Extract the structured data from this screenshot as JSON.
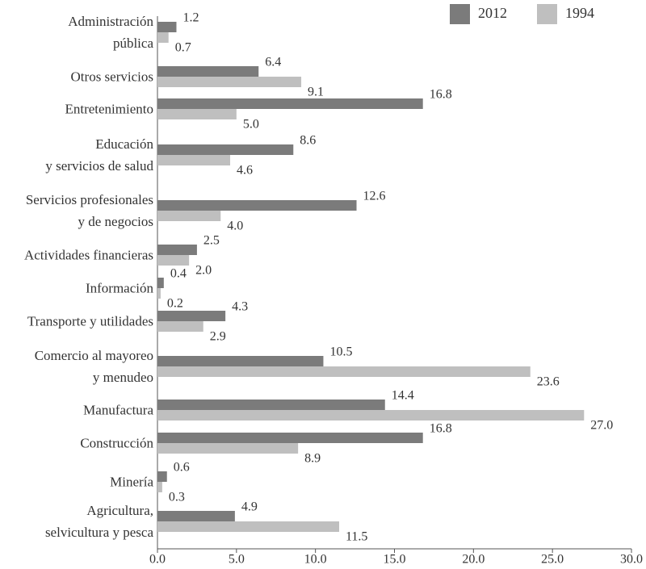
{
  "chart_data": {
    "type": "bar",
    "orientation": "horizontal",
    "categories": [
      "Administración\npública",
      "Otros servicios",
      "Entretenimiento",
      "Educación\ny servicios de salud",
      "Servicios profesionales\ny de negocios",
      "Actividades financieras",
      "Información",
      "Transporte y utilidades",
      "Comercio al mayoreo\ny menudeo",
      "Manufactura",
      "Construcción",
      "Minería",
      "Agricultura,\nselvicultura y pesca"
    ],
    "series": [
      {
        "name": "2012",
        "color": "#7b7b7b",
        "values": [
          1.2,
          6.4,
          16.8,
          8.6,
          12.6,
          2.5,
          0.4,
          4.3,
          10.5,
          14.4,
          16.8,
          0.6,
          4.9
        ],
        "value_labels": [
          "1.2",
          "6.4",
          "16.8",
          "8.6",
          "12.6",
          "2.5",
          "0.4",
          "4.3",
          "10.5",
          "14.4",
          "16.8",
          "0.6",
          "4.9"
        ]
      },
      {
        "name": "1994",
        "color": "#bfbfbf",
        "values": [
          0.7,
          9.1,
          5.0,
          4.6,
          4.0,
          2.0,
          0.2,
          2.9,
          23.6,
          27.0,
          8.9,
          0.3,
          11.5
        ],
        "value_labels": [
          "0.7",
          "9.1",
          "5.0",
          "4.6",
          "4.0",
          "2.0",
          "0.2",
          "2.9",
          "23.6",
          "27.0",
          "8.9",
          "0.3",
          "11.5"
        ]
      }
    ],
    "xlim": [
      0,
      30
    ],
    "xticks": [
      {
        "value": 0,
        "label": "0.0"
      },
      {
        "value": 5,
        "label": "5.0"
      },
      {
        "value": 10,
        "label": "10.0"
      },
      {
        "value": 15,
        "label": "15.0"
      },
      {
        "value": 20,
        "label": "20.0"
      },
      {
        "value": 25,
        "label": "25.0"
      },
      {
        "value": 30,
        "label": "30.0"
      }
    ],
    "legend": "top-right"
  }
}
